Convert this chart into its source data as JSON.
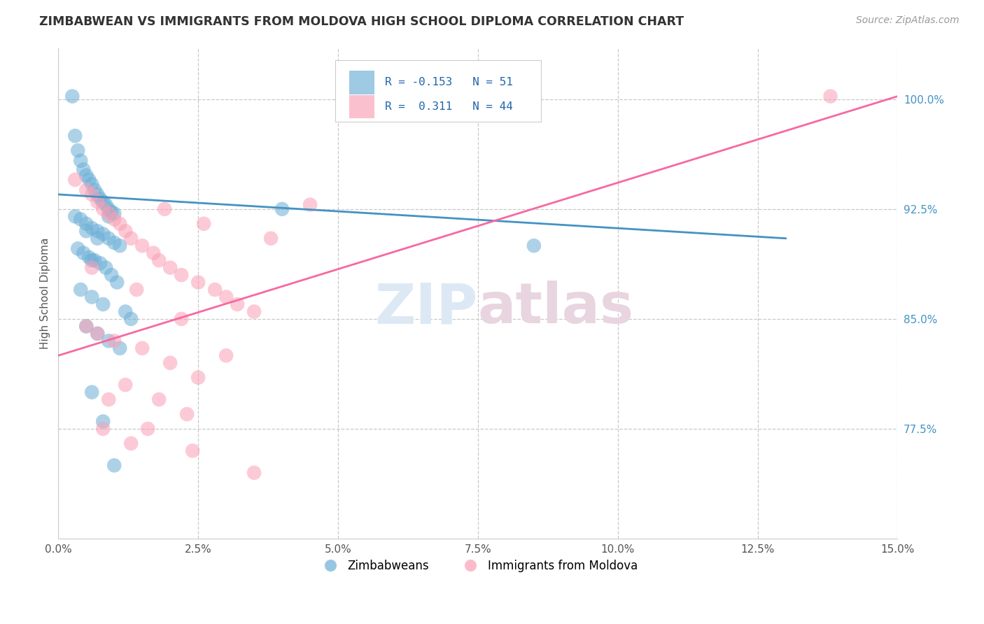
{
  "title": "ZIMBABWEAN VS IMMIGRANTS FROM MOLDOVA HIGH SCHOOL DIPLOMA CORRELATION CHART",
  "source": "Source: ZipAtlas.com",
  "ylabel": "High School Diploma",
  "right_yticks": [
    77.5,
    85.0,
    92.5,
    100.0
  ],
  "right_ytick_labels": [
    "77.5%",
    "85.0%",
    "92.5%",
    "100.0%"
  ],
  "xmin": 0.0,
  "xmax": 15.0,
  "ymin": 70.0,
  "ymax": 103.5,
  "blue_R": -0.153,
  "blue_N": 51,
  "pink_R": 0.311,
  "pink_N": 44,
  "blue_color": "#6baed6",
  "pink_color": "#fa9fb5",
  "blue_line_color": "#4393c3",
  "pink_line_color": "#f768a1",
  "watermark_zip": "ZIP",
  "watermark_atlas": "atlas",
  "legend_label_blue": "Zimbabweans",
  "legend_label_pink": "Immigrants from Moldova",
  "blue_scatter_x": [
    0.25,
    0.3,
    0.35,
    0.4,
    0.45,
    0.5,
    0.55,
    0.6,
    0.65,
    0.7,
    0.75,
    0.8,
    0.85,
    0.9,
    0.95,
    1.0,
    0.3,
    0.4,
    0.5,
    0.6,
    0.7,
    0.8,
    0.9,
    1.0,
    1.1,
    0.35,
    0.45,
    0.55,
    0.65,
    0.75,
    0.85,
    0.95,
    1.05,
    0.4,
    0.6,
    0.8,
    1.2,
    1.3,
    0.5,
    0.7,
    0.9,
    1.1,
    0.6,
    0.8,
    1.0,
    4.0,
    0.9,
    0.5,
    0.7,
    8.5,
    0.6
  ],
  "blue_scatter_y": [
    100.2,
    97.5,
    96.5,
    95.8,
    95.2,
    94.8,
    94.5,
    94.2,
    93.8,
    93.5,
    93.2,
    93.0,
    92.8,
    92.5,
    92.3,
    92.2,
    92.0,
    91.8,
    91.5,
    91.2,
    91.0,
    90.8,
    90.5,
    90.2,
    90.0,
    89.8,
    89.5,
    89.2,
    89.0,
    88.8,
    88.5,
    88.0,
    87.5,
    87.0,
    86.5,
    86.0,
    85.5,
    85.0,
    84.5,
    84.0,
    83.5,
    83.0,
    80.0,
    78.0,
    75.0,
    92.5,
    92.0,
    91.0,
    90.5,
    90.0,
    89.0
  ],
  "pink_scatter_x": [
    0.3,
    0.5,
    0.6,
    0.7,
    0.8,
    0.9,
    1.0,
    1.1,
    1.2,
    1.3,
    1.5,
    1.7,
    1.8,
    2.0,
    2.2,
    2.5,
    2.8,
    3.0,
    3.2,
    3.5,
    0.5,
    0.7,
    1.0,
    1.5,
    2.0,
    2.5,
    1.2,
    1.8,
    2.3,
    0.8,
    1.3,
    1.9,
    2.6,
    3.8,
    4.5,
    0.6,
    1.4,
    2.2,
    3.0,
    0.9,
    1.6,
    2.4,
    3.5,
    13.8
  ],
  "pink_scatter_y": [
    94.5,
    93.8,
    93.5,
    93.0,
    92.5,
    92.2,
    91.8,
    91.5,
    91.0,
    90.5,
    90.0,
    89.5,
    89.0,
    88.5,
    88.0,
    87.5,
    87.0,
    86.5,
    86.0,
    85.5,
    84.5,
    84.0,
    83.5,
    83.0,
    82.0,
    81.0,
    80.5,
    79.5,
    78.5,
    77.5,
    76.5,
    92.5,
    91.5,
    90.5,
    92.8,
    88.5,
    87.0,
    85.0,
    82.5,
    79.5,
    77.5,
    76.0,
    74.5,
    100.2
  ],
  "blue_line_x0": 0.0,
  "blue_line_x1": 13.0,
  "blue_line_y0": 93.5,
  "blue_line_y1": 90.5,
  "pink_line_x0": 0.0,
  "pink_line_x1": 15.0,
  "pink_line_y0": 82.5,
  "pink_line_y1": 100.2
}
